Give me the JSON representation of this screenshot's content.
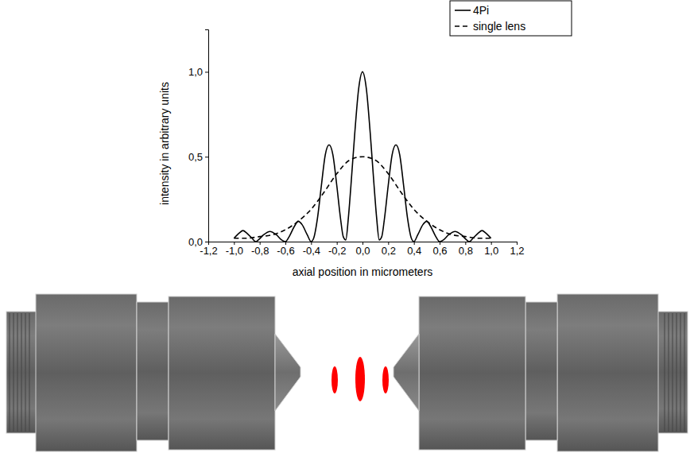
{
  "chart_data": {
    "type": "line",
    "x_label": "axial position in micrometers",
    "y_label": "intensity in arbitrary units",
    "xlim": [
      -1.2,
      1.2
    ],
    "ylim": [
      0,
      1.25
    ],
    "xticks": [
      {
        "value": -1.2,
        "label": "-1,2"
      },
      {
        "value": -1.0,
        "label": "-1,0"
      },
      {
        "value": -0.8,
        "label": "-0,8"
      },
      {
        "value": -0.6,
        "label": "-0,6"
      },
      {
        "value": -0.4,
        "label": "-0,4"
      },
      {
        "value": -0.2,
        "label": "-0,2"
      },
      {
        "value": 0.0,
        "label": "0,0"
      },
      {
        "value": 0.2,
        "label": "0,2"
      },
      {
        "value": 0.4,
        "label": "0,4"
      },
      {
        "value": 0.6,
        "label": "0,6"
      },
      {
        "value": 0.8,
        "label": "0,8"
      },
      {
        "value": 1.0,
        "label": "1,0"
      },
      {
        "value": 1.2,
        "label": "1,2"
      }
    ],
    "yticks": [
      {
        "value": 0.0,
        "label": "0,0"
      },
      {
        "value": 0.5,
        "label": "0,5"
      },
      {
        "value": 1.0,
        "label": "1,0"
      }
    ],
    "grid": false,
    "legend": "top-right",
    "series": [
      {
        "name": "4Pi",
        "color": "#000000",
        "line_style": "solid",
        "x": [
          -1.0,
          -0.96,
          -0.93,
          -0.9,
          -0.86,
          -0.83,
          -0.81,
          -0.77,
          -0.72,
          -0.67,
          -0.63,
          -0.6,
          -0.57,
          -0.53,
          -0.5,
          -0.47,
          -0.43,
          -0.4,
          -0.38,
          -0.35,
          -0.32,
          -0.29,
          -0.26,
          -0.23,
          -0.2,
          -0.17,
          -0.15,
          -0.13,
          -0.11,
          -0.09,
          -0.06,
          -0.03,
          0,
          0.03,
          0.06,
          0.09,
          0.11,
          0.13,
          0.15,
          0.17,
          0.2,
          0.23,
          0.26,
          0.29,
          0.32,
          0.35,
          0.38,
          0.4,
          0.43,
          0.47,
          0.5,
          0.53,
          0.57,
          0.6,
          0.63,
          0.67,
          0.72,
          0.77,
          0.81,
          0.83,
          0.86,
          0.9,
          0.93,
          0.96,
          1.0
        ],
        "values": [
          0.02,
          0.05,
          0.065,
          0.05,
          0.02,
          0,
          0.01,
          0.04,
          0.06,
          0.04,
          0.01,
          0,
          0.03,
          0.09,
          0.12,
          0.1,
          0.04,
          0,
          0.02,
          0.14,
          0.33,
          0.51,
          0.57,
          0.51,
          0.33,
          0.13,
          0.03,
          0.01,
          0.14,
          0.33,
          0.64,
          0.9,
          1.0,
          0.9,
          0.64,
          0.33,
          0.14,
          0.01,
          0.03,
          0.13,
          0.33,
          0.51,
          0.57,
          0.51,
          0.33,
          0.14,
          0.02,
          0,
          0.04,
          0.1,
          0.12,
          0.09,
          0.03,
          0,
          0.01,
          0.04,
          0.06,
          0.04,
          0.01,
          0,
          0.02,
          0.05,
          0.065,
          0.05,
          0.02
        ]
      },
      {
        "name": "single lens",
        "color": "#000000",
        "line_style": "dashed",
        "x": [
          -1.0,
          -0.9,
          -0.8,
          -0.7,
          -0.6,
          -0.5,
          -0.4,
          -0.3,
          -0.2,
          -0.1,
          0,
          0.1,
          0.2,
          0.3,
          0.4,
          0.5,
          0.6,
          0.7,
          0.8,
          0.9,
          1.0
        ],
        "values": [
          0.02,
          0.02,
          0.03,
          0.04,
          0.07,
          0.12,
          0.19,
          0.29,
          0.4,
          0.48,
          0.5,
          0.48,
          0.4,
          0.29,
          0.19,
          0.12,
          0.07,
          0.04,
          0.03,
          0.02,
          0.02
        ]
      }
    ]
  }
}
